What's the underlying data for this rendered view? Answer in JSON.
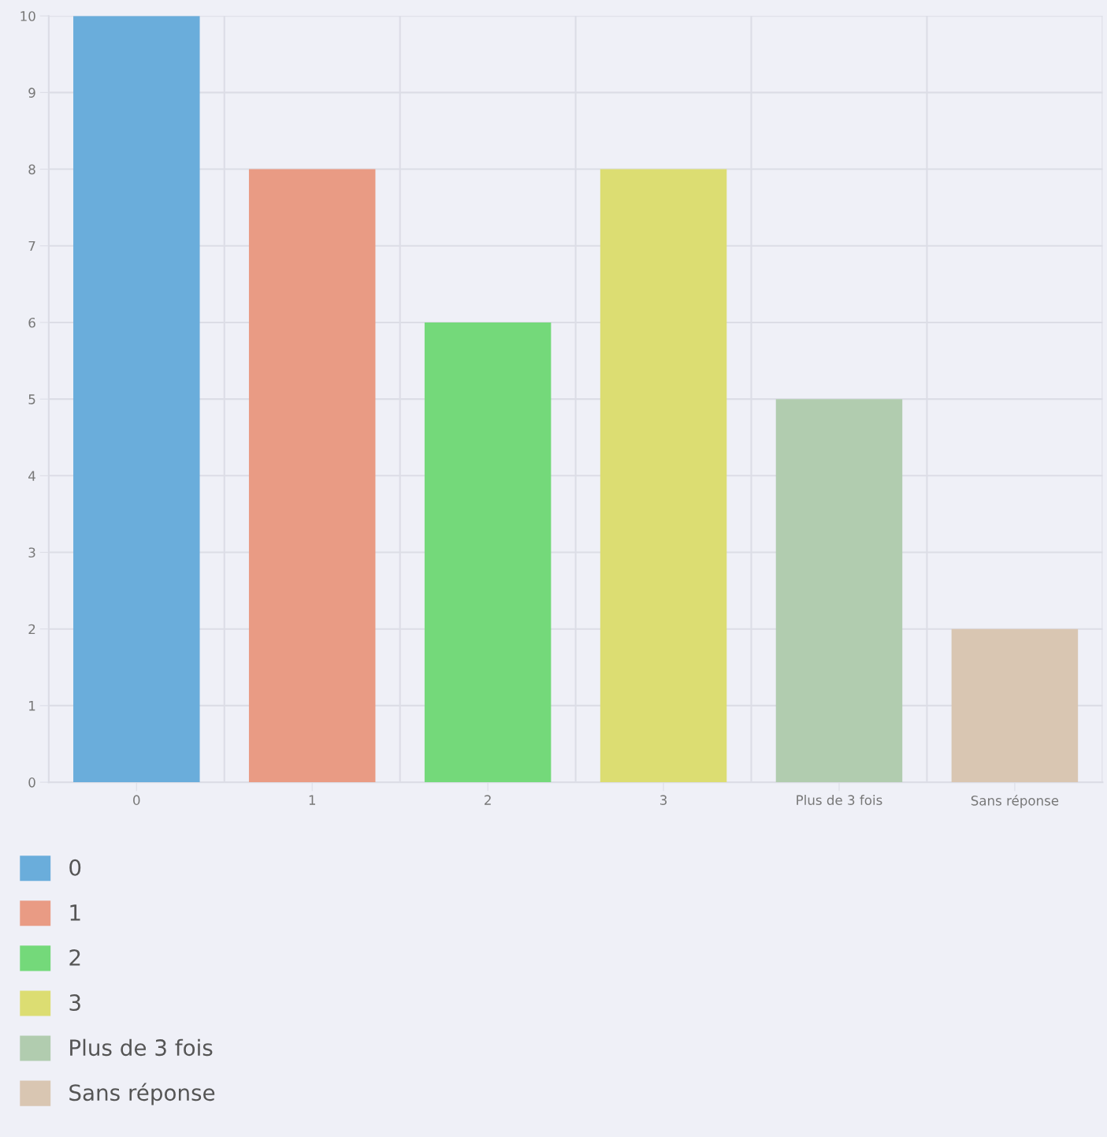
{
  "chart_data": {
    "type": "bar",
    "categories": [
      "0",
      "1",
      "2",
      "3",
      "Plus de 3 fois",
      "Sans réponse"
    ],
    "series": [
      {
        "name": "0",
        "color": "#6aaddb",
        "values": [
          10,
          null,
          null,
          null,
          null,
          null
        ]
      },
      {
        "name": "1",
        "color": "#e99b84",
        "values": [
          null,
          8,
          null,
          null,
          null,
          null
        ]
      },
      {
        "name": "2",
        "color": "#74d97a",
        "values": [
          null,
          null,
          6,
          null,
          null,
          null
        ]
      },
      {
        "name": "3",
        "color": "#dcdd72",
        "values": [
          null,
          null,
          null,
          8,
          null,
          null
        ]
      },
      {
        "name": "Plus de 3 fois",
        "color": "#b1ccaf",
        "values": [
          null,
          null,
          null,
          null,
          5,
          null
        ]
      },
      {
        "name": "Sans réponse",
        "color": "#d9c6b2",
        "values": [
          null,
          null,
          null,
          null,
          null,
          2
        ]
      }
    ],
    "ylim": [
      0,
      10
    ],
    "yticks": [
      0,
      1,
      2,
      3,
      4,
      5,
      6,
      7,
      8,
      9,
      10
    ],
    "grid": true,
    "legend": "bottom left"
  }
}
